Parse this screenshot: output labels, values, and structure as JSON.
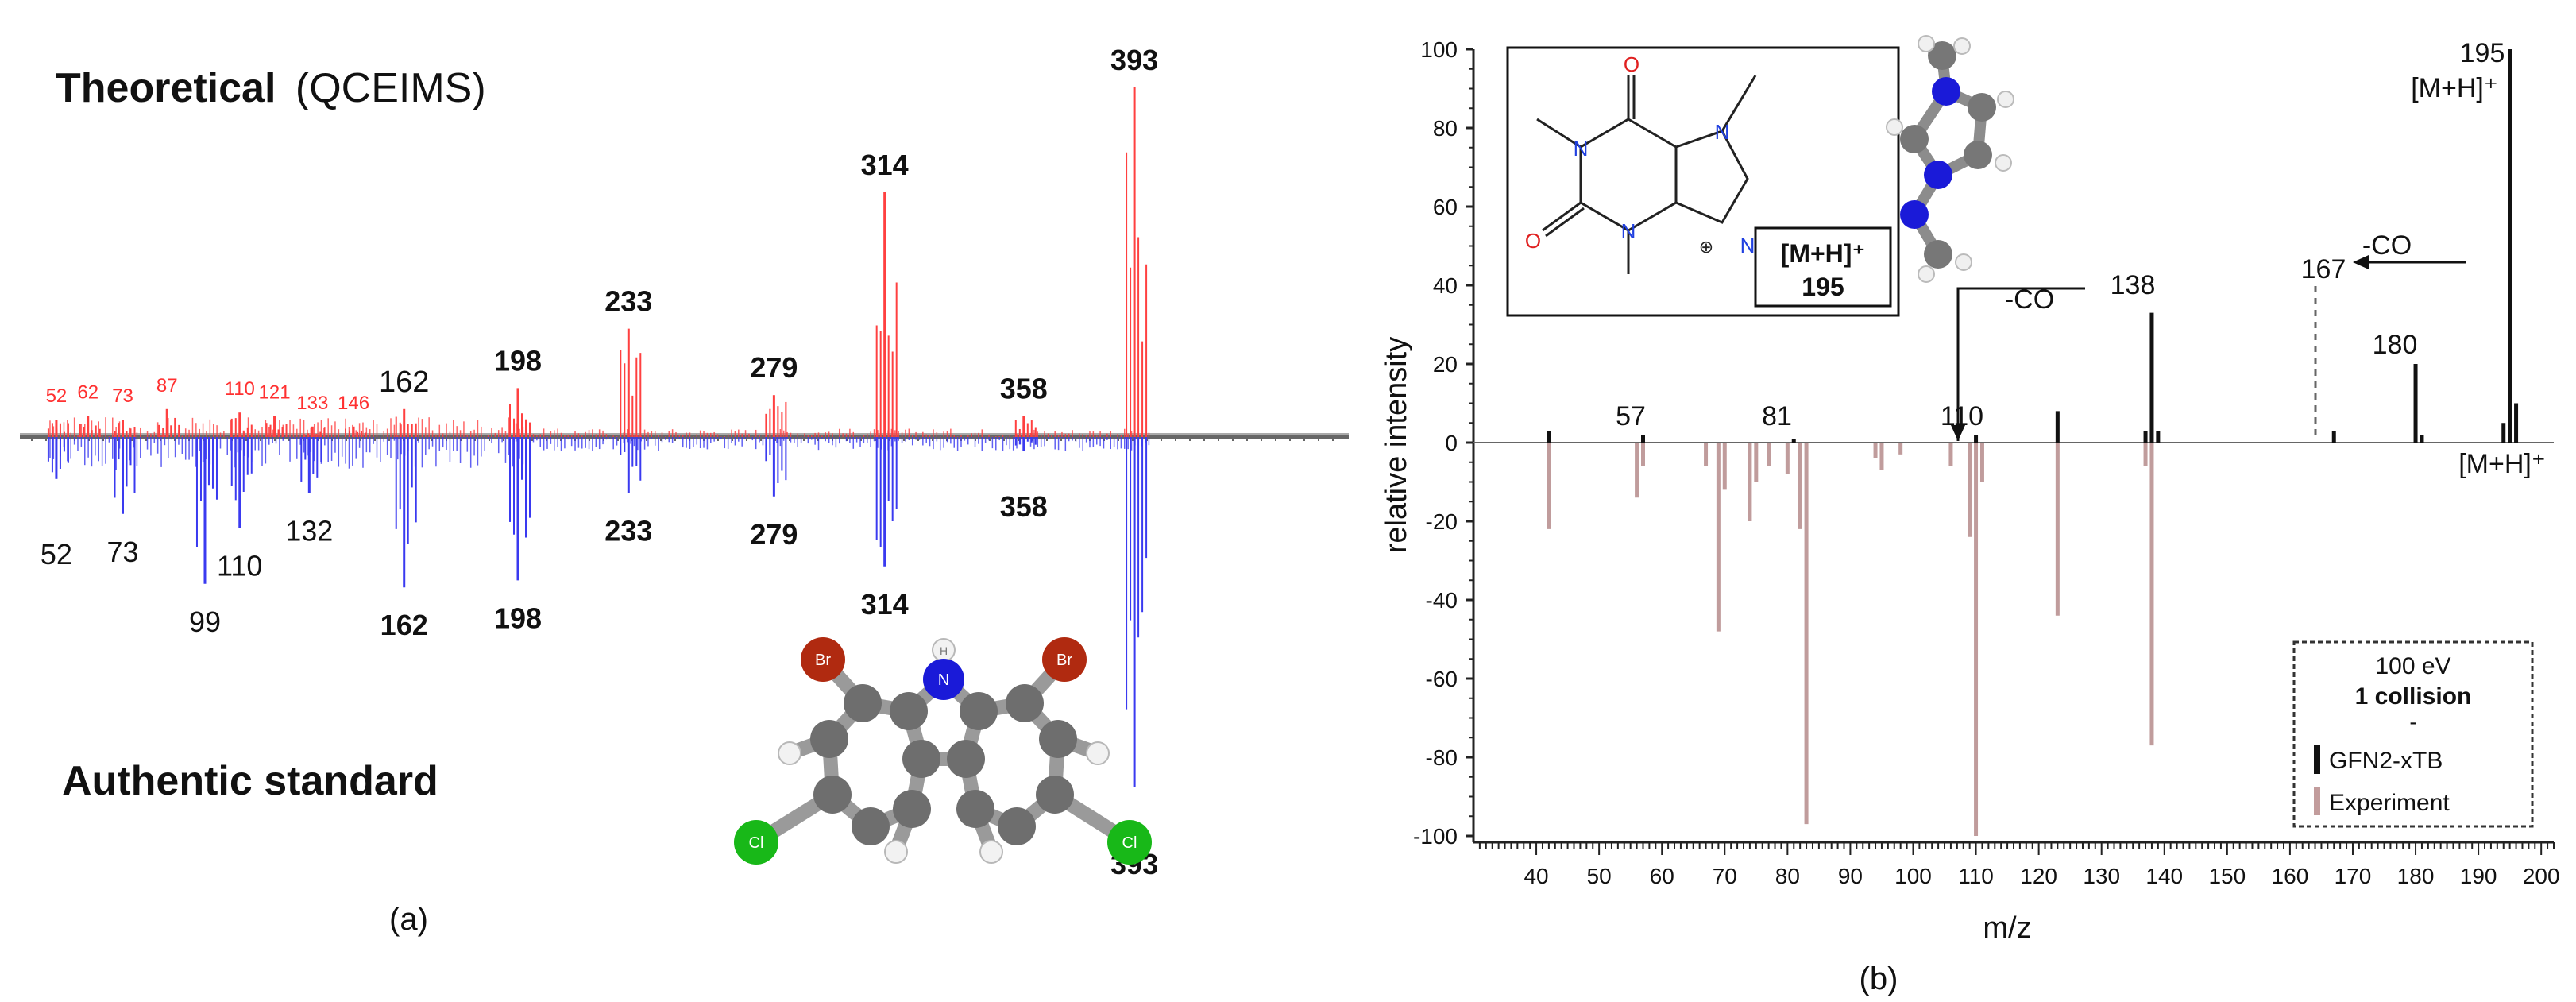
{
  "panel_a": {
    "title_bold": "Theoretical",
    "title_rest": "(QCEIMS)",
    "bottom_label": "Authentic standard",
    "panel_label": "(a)",
    "molecule_atoms": [
      "Br",
      "Br",
      "N",
      "H",
      "Cl",
      "Cl"
    ]
  },
  "panel_b": {
    "panel_label": "(b)",
    "xlabel": "m/z",
    "ylabel": "relative intensity",
    "legend_title": "100 eV",
    "legend_subtitle": "1 collision",
    "legend_dash": "-",
    "legend_items": [
      "GFN2-xTB",
      "Experiment"
    ],
    "inset_ion": "[M+H]⁺",
    "inset_mass": "195",
    "struct_atoms": [
      "O",
      "O",
      "N",
      "N",
      "N",
      "N",
      "H",
      "⊕"
    ],
    "annotations": {
      "peak_195": "195",
      "mh_top": "[M+H]⁺",
      "co_right": "-CO",
      "peak_167": "167",
      "co_left": "-CO",
      "peak_138": "138",
      "peak_180": "180",
      "peak_110": "110",
      "peak_81": "81",
      "peak_57": "57",
      "mh_bottom": "[M+H]⁺"
    }
  },
  "chart_data": [
    {
      "type": "bar",
      "title": "Theoretical (QCEIMS)",
      "xlabel": "",
      "ylabel": "",
      "series": [
        {
          "name": "Theoretical (QCEIMS)",
          "color": "#ff4040",
          "labeled_peaks": [
            {
              "mz": 52,
              "intensity": 0.05
            },
            {
              "mz": 62,
              "intensity": 0.06
            },
            {
              "mz": 73,
              "intensity": 0.05
            },
            {
              "mz": 87,
              "intensity": 0.08
            },
            {
              "mz": 110,
              "intensity": 0.07
            },
            {
              "mz": 121,
              "intensity": 0.06
            },
            {
              "mz": 133,
              "intensity": 0.03
            },
            {
              "mz": 146,
              "intensity": 0.03
            },
            {
              "mz": 162,
              "intensity": 0.08
            },
            {
              "mz": 198,
              "intensity": 0.14
            },
            {
              "mz": 233,
              "intensity": 0.31
            },
            {
              "mz": 279,
              "intensity": 0.12
            },
            {
              "mz": 314,
              "intensity": 0.7
            },
            {
              "mz": 358,
              "intensity": 0.06
            },
            {
              "mz": 393,
              "intensity": 1.0
            }
          ],
          "peak_labels": [
            "52",
            "62",
            "73",
            "87",
            "110",
            "121",
            "133",
            "146",
            "162",
            "198",
            "233",
            "279",
            "314",
            "358",
            "393"
          ]
        },
        {
          "name": "Authentic standard",
          "color": "#3a3af0",
          "labeled_peaks": [
            {
              "mz": 52,
              "intensity": 0.12
            },
            {
              "mz": 73,
              "intensity": 0.22
            },
            {
              "mz": 99,
              "intensity": 0.42
            },
            {
              "mz": 110,
              "intensity": 0.26
            },
            {
              "mz": 132,
              "intensity": 0.16
            },
            {
              "mz": 162,
              "intensity": 0.43
            },
            {
              "mz": 198,
              "intensity": 0.41
            },
            {
              "mz": 233,
              "intensity": 0.16
            },
            {
              "mz": 279,
              "intensity": 0.17
            },
            {
              "mz": 314,
              "intensity": 0.37
            },
            {
              "mz": 358,
              "intensity": 0.04
            },
            {
              "mz": 393,
              "intensity": 1.0
            }
          ],
          "peak_labels": [
            "52",
            "73",
            "99",
            "110",
            "132",
            "162",
            "198",
            "233",
            "279",
            "314",
            "358",
            "393"
          ]
        }
      ]
    },
    {
      "type": "bar",
      "title": "",
      "xlabel": "m/z",
      "ylabel": "relative intensity",
      "xlim": [
        30,
        202
      ],
      "ylim": [
        -100,
        100
      ],
      "xticks": [
        40,
        50,
        60,
        70,
        80,
        90,
        100,
        110,
        120,
        130,
        140,
        150,
        160,
        170,
        180,
        190,
        200
      ],
      "yticks": [
        -100,
        -80,
        -60,
        -40,
        -20,
        0,
        20,
        40,
        60,
        80,
        100
      ],
      "legend_position": "bottom-right",
      "series": [
        {
          "name": "GFN2-xTB",
          "color": "#111111",
          "points": [
            {
              "mz": 42,
              "intensity": 3
            },
            {
              "mz": 57,
              "intensity": 2
            },
            {
              "mz": 81,
              "intensity": 1
            },
            {
              "mz": 110,
              "intensity": 2
            },
            {
              "mz": 123,
              "intensity": 8
            },
            {
              "mz": 137,
              "intensity": 3
            },
            {
              "mz": 138,
              "intensity": 33
            },
            {
              "mz": 139,
              "intensity": 3
            },
            {
              "mz": 167,
              "intensity": 3
            },
            {
              "mz": 180,
              "intensity": 20
            },
            {
              "mz": 181,
              "intensity": 2
            },
            {
              "mz": 194,
              "intensity": 5
            },
            {
              "mz": 195,
              "intensity": 100
            },
            {
              "mz": 196,
              "intensity": 10
            }
          ]
        },
        {
          "name": "Experiment",
          "color": "#b99090",
          "points": [
            {
              "mz": 42,
              "intensity": -22
            },
            {
              "mz": 56,
              "intensity": -14
            },
            {
              "mz": 57,
              "intensity": -6
            },
            {
              "mz": 67,
              "intensity": -6
            },
            {
              "mz": 69,
              "intensity": -48
            },
            {
              "mz": 70,
              "intensity": -12
            },
            {
              "mz": 74,
              "intensity": -20
            },
            {
              "mz": 75,
              "intensity": -10
            },
            {
              "mz": 77,
              "intensity": -6
            },
            {
              "mz": 80,
              "intensity": -8
            },
            {
              "mz": 82,
              "intensity": -22
            },
            {
              "mz": 83,
              "intensity": -97
            },
            {
              "mz": 94,
              "intensity": -4
            },
            {
              "mz": 95,
              "intensity": -7
            },
            {
              "mz": 98,
              "intensity": -3
            },
            {
              "mz": 106,
              "intensity": -6
            },
            {
              "mz": 109,
              "intensity": -24
            },
            {
              "mz": 110,
              "intensity": -100
            },
            {
              "mz": 111,
              "intensity": -10
            },
            {
              "mz": 123,
              "intensity": -44
            },
            {
              "mz": 137,
              "intensity": -6
            },
            {
              "mz": 138,
              "intensity": -77
            }
          ]
        }
      ]
    }
  ]
}
